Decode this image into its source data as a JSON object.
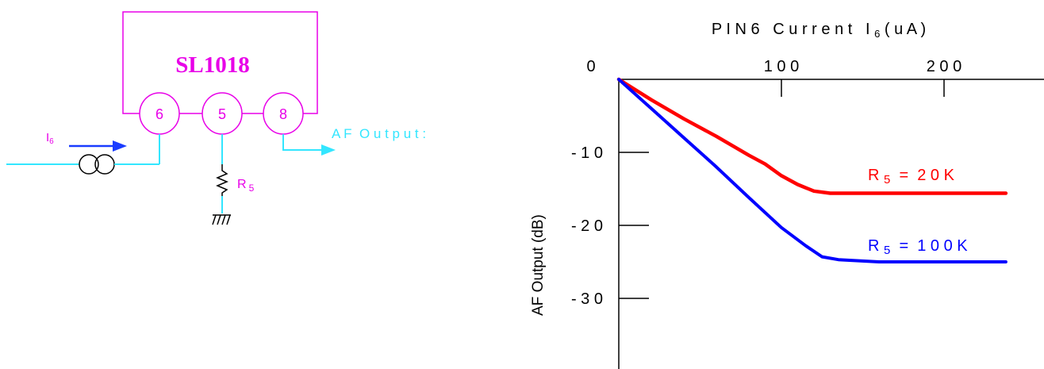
{
  "schematic": {
    "chip_name": "SL1018",
    "pins": [
      "6",
      "5",
      "8"
    ],
    "current_source_label": "I",
    "current_source_subscript": "6",
    "resistor_label": "R",
    "resistor_subscript": "5",
    "output_label": "A F  O u t p u t :",
    "colors": {
      "chip": "#e800e8",
      "wire": "#33e6ff",
      "arrow": "#1a3cff",
      "component": "#000000"
    }
  },
  "chart_data": {
    "type": "line",
    "title_parts": [
      "P I N 6   C u r r e n t   I ",
      "6",
      " ( u A )"
    ],
    "xlabel": "",
    "ylabel": "AF Output (dB)",
    "x_ticks": [
      100,
      200
    ],
    "x_tick_labels": [
      "1 0 0",
      "2 0 0"
    ],
    "origin_label": "0",
    "y_ticks": [
      -10,
      -20,
      -30
    ],
    "y_tick_labels": [
      "- 1 0",
      "- 2 0",
      "- 3 0"
    ],
    "xlim": [
      0,
      240
    ],
    "ylim": [
      -40,
      0
    ],
    "grid": false,
    "series": [
      {
        "name_parts": [
          "R ",
          "5",
          "  =  2 0 K"
        ],
        "color": "#ff0000",
        "x": [
          0,
          20,
          40,
          60,
          80,
          90,
          100,
          110,
          120,
          130,
          150,
          200,
          238
        ],
        "y": [
          0,
          -2.8,
          -5.4,
          -7.8,
          -10.4,
          -11.6,
          -13.2,
          -14.4,
          -15.3,
          -15.6,
          -15.6,
          -15.6,
          -15.6
        ]
      },
      {
        "name_parts": [
          "R ",
          "5",
          "  =  1 0 0 K"
        ],
        "color": "#0000ff",
        "x": [
          0,
          20,
          40,
          60,
          80,
          100,
          115,
          125,
          135,
          160,
          200,
          238
        ],
        "y": [
          0,
          -4,
          -8,
          -12,
          -16.2,
          -20.3,
          -22.8,
          -24.3,
          -24.7,
          -25,
          -25,
          -25
        ]
      }
    ]
  }
}
